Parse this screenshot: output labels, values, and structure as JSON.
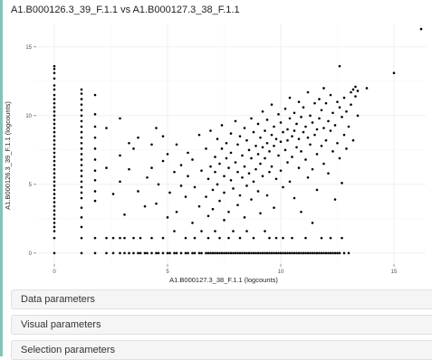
{
  "plot": {
    "title": "A1.B000126.3_39_F.1.1 vs A1.B000127.3_38_F.1.1"
  },
  "chart_data": {
    "type": "scatter",
    "title": "A1.B000126.3_39_F.1.1 vs A1.B000127.3_38_F.1.1",
    "xlabel": "A1.B000127.3_38_F.1.1 (logcounts)",
    "ylabel": "A1.B000126.3_39_F.1.1 (logcounts)",
    "xlim": [
      -0.8,
      16.4
    ],
    "ylim": [
      -0.8,
      16.7
    ],
    "xticks": [
      0,
      5,
      10,
      15
    ],
    "yticks": [
      0,
      5,
      10,
      15
    ],
    "grid": true,
    "point_color": "#000000",
    "panel_background": "#ffffff",
    "grid_color": "#ebebeb",
    "points": [
      [
        0,
        13.6
      ],
      [
        0,
        13.4
      ],
      [
        0,
        13.1
      ],
      [
        0,
        12.7
      ],
      [
        0,
        12.2
      ],
      [
        0,
        11.9
      ],
      [
        0,
        11.5
      ],
      [
        0,
        11.2
      ],
      [
        0,
        10.9
      ],
      [
        0,
        10.6
      ],
      [
        0,
        10.3
      ],
      [
        0,
        10.0
      ],
      [
        0,
        9.7
      ],
      [
        0,
        9.4
      ],
      [
        0,
        9.1
      ],
      [
        0,
        8.8
      ],
      [
        0,
        8.5
      ],
      [
        0,
        8.2
      ],
      [
        0,
        7.9
      ],
      [
        0,
        7.6
      ],
      [
        0,
        7.3
      ],
      [
        0,
        7.0
      ],
      [
        0,
        6.7
      ],
      [
        0,
        6.4
      ],
      [
        0,
        6.1
      ],
      [
        0,
        5.8
      ],
      [
        0,
        5.5
      ],
      [
        0,
        5.2
      ],
      [
        0,
        4.9
      ],
      [
        0,
        4.6
      ],
      [
        0,
        4.3
      ],
      [
        0,
        4.0
      ],
      [
        0,
        3.7
      ],
      [
        0,
        3.4
      ],
      [
        0,
        3.1
      ],
      [
        0,
        2.8
      ],
      [
        0,
        2.5
      ],
      [
        0,
        2.2
      ],
      [
        0,
        1.9
      ],
      [
        0,
        1.6
      ],
      [
        0,
        1.1
      ],
      [
        0,
        0
      ],
      [
        1.2,
        11.9
      ],
      [
        1.2,
        11.6
      ],
      [
        1.2,
        11.2
      ],
      [
        1.2,
        10.8
      ],
      [
        1.2,
        10.4
      ],
      [
        1.2,
        10.0
      ],
      [
        1.2,
        9.6
      ],
      [
        1.2,
        9.2
      ],
      [
        1.2,
        8.8
      ],
      [
        1.2,
        8.4
      ],
      [
        1.2,
        8.0
      ],
      [
        1.2,
        7.6
      ],
      [
        1.2,
        7.2
      ],
      [
        1.2,
        6.8
      ],
      [
        1.2,
        6.4
      ],
      [
        1.2,
        6.0
      ],
      [
        1.2,
        5.6
      ],
      [
        1.2,
        5.2
      ],
      [
        1.2,
        4.8
      ],
      [
        1.2,
        4.4
      ],
      [
        1.2,
        4.0
      ],
      [
        1.2,
        3.3
      ],
      [
        1.2,
        2.6
      ],
      [
        1.2,
        1.9
      ],
      [
        1.2,
        1.1
      ],
      [
        1.2,
        0
      ],
      [
        1.8,
        11.5
      ],
      [
        1.8,
        10.1
      ],
      [
        1.8,
        9.2
      ],
      [
        1.8,
        8.4
      ],
      [
        1.8,
        7.6
      ],
      [
        1.8,
        6.8
      ],
      [
        1.8,
        6.0
      ],
      [
        1.8,
        5.3
      ],
      [
        1.8,
        4.5
      ],
      [
        1.8,
        3.8
      ],
      [
        1.8,
        1.1
      ],
      [
        1.8,
        0
      ],
      [
        2.3,
        9.1
      ],
      [
        2.3,
        6.2
      ],
      [
        2.3,
        1.1
      ],
      [
        2.3,
        0
      ],
      [
        2.6,
        4.3
      ],
      [
        2.6,
        1.1
      ],
      [
        2.6,
        0
      ],
      [
        2.9,
        9.8
      ],
      [
        2.9,
        7.1
      ],
      [
        2.9,
        5.2
      ],
      [
        2.9,
        1.1
      ],
      [
        2.9,
        0
      ],
      [
        3.1,
        2.8
      ],
      [
        3.1,
        1.1
      ],
      [
        3.1,
        0
      ],
      [
        3.3,
        8.0
      ],
      [
        3.3,
        6.1
      ],
      [
        3.3,
        0
      ],
      [
        3.5,
        7.6
      ],
      [
        3.5,
        1.1
      ],
      [
        3.5,
        0
      ],
      [
        3.7,
        8.4
      ],
      [
        3.7,
        4.5
      ],
      [
        3.7,
        0
      ],
      [
        3.8,
        1.1
      ],
      [
        3.8,
        0
      ],
      [
        4.0,
        3.4
      ],
      [
        4.0,
        0
      ],
      [
        4.1,
        5.5
      ],
      [
        4.1,
        0
      ],
      [
        4.3,
        7.9
      ],
      [
        4.3,
        6.2
      ],
      [
        4.3,
        1.1
      ],
      [
        4.3,
        0
      ],
      [
        4.5,
        9.1
      ],
      [
        4.5,
        3.6
      ],
      [
        4.5,
        0
      ],
      [
        4.6,
        5.0
      ],
      [
        4.6,
        0
      ],
      [
        4.8,
        8.5
      ],
      [
        4.8,
        6.7
      ],
      [
        4.8,
        1.1
      ],
      [
        4.8,
        0
      ],
      [
        5.0,
        7.2
      ],
      [
        5.0,
        2.6
      ],
      [
        5.0,
        0
      ],
      [
        5.1,
        4.4
      ],
      [
        5.1,
        0
      ],
      [
        5.3,
        5.9
      ],
      [
        5.3,
        1.6
      ],
      [
        5.3,
        0
      ],
      [
        5.4,
        7.9
      ],
      [
        5.4,
        3.0
      ],
      [
        5.4,
        0
      ],
      [
        5.6,
        6.4
      ],
      [
        5.6,
        4.9
      ],
      [
        5.6,
        0
      ],
      [
        5.8,
        4.1
      ],
      [
        5.8,
        1.1
      ],
      [
        5.8,
        0
      ],
      [
        5.9,
        7.3
      ],
      [
        5.9,
        5.6
      ],
      [
        5.9,
        0
      ],
      [
        6.1,
        6.8
      ],
      [
        6.1,
        2.2
      ],
      [
        6.1,
        0
      ],
      [
        6.2,
        4.8
      ],
      [
        6.2,
        1.1
      ],
      [
        6.2,
        0
      ],
      [
        6.4,
        8.6
      ],
      [
        6.4,
        3.4
      ],
      [
        6.4,
        0
      ],
      [
        6.5,
        6.0
      ],
      [
        6.5,
        1.6
      ],
      [
        6.5,
        0
      ],
      [
        6.7,
        7.6
      ],
      [
        6.7,
        4.1
      ],
      [
        6.7,
        0
      ],
      [
        6.8,
        5.4
      ],
      [
        6.8,
        2.7
      ],
      [
        6.8,
        1.1
      ],
      [
        6.8,
        0
      ],
      [
        6.9,
        8.9
      ],
      [
        6.9,
        6.3
      ],
      [
        6.9,
        0
      ],
      [
        7.0,
        4.6
      ],
      [
        7.0,
        3.2
      ],
      [
        7.0,
        0
      ],
      [
        7.1,
        7.0
      ],
      [
        7.1,
        5.9
      ],
      [
        7.1,
        1.6
      ],
      [
        7.1,
        0
      ],
      [
        7.2,
        8.3
      ],
      [
        7.2,
        5.0
      ],
      [
        7.2,
        0
      ],
      [
        7.3,
        6.5
      ],
      [
        7.3,
        3.8
      ],
      [
        7.3,
        1.1
      ],
      [
        7.3,
        0
      ],
      [
        7.4,
        9.3
      ],
      [
        7.4,
        7.6
      ],
      [
        7.4,
        0
      ],
      [
        7.5,
        5.6
      ],
      [
        7.5,
        4.4
      ],
      [
        7.5,
        2.4
      ],
      [
        7.5,
        0
      ],
      [
        7.6,
        8.0
      ],
      [
        7.6,
        6.9
      ],
      [
        7.6,
        0
      ],
      [
        7.7,
        6.2
      ],
      [
        7.7,
        3.0
      ],
      [
        7.7,
        1.1
      ],
      [
        7.7,
        0
      ],
      [
        7.8,
        8.7
      ],
      [
        7.8,
        7.3
      ],
      [
        7.8,
        5.3
      ],
      [
        7.8,
        0
      ],
      [
        7.9,
        4.7
      ],
      [
        7.9,
        1.6
      ],
      [
        7.9,
        0
      ],
      [
        8.0,
        9.6
      ],
      [
        8.0,
        6.6
      ],
      [
        8.0,
        0
      ],
      [
        8.1,
        7.9
      ],
      [
        8.1,
        5.9
      ],
      [
        8.1,
        3.5
      ],
      [
        8.1,
        0
      ],
      [
        8.2,
        8.5
      ],
      [
        8.2,
        4.2
      ],
      [
        8.2,
        1.1
      ],
      [
        8.2,
        0
      ],
      [
        8.3,
        7.1
      ],
      [
        8.3,
        5.5
      ],
      [
        8.3,
        0
      ],
      [
        8.4,
        9.1
      ],
      [
        8.4,
        6.3
      ],
      [
        8.4,
        2.6
      ],
      [
        8.4,
        0
      ],
      [
        8.5,
        8.2
      ],
      [
        8.5,
        4.9
      ],
      [
        8.5,
        1.6
      ],
      [
        8.5,
        0
      ],
      [
        8.6,
        7.5
      ],
      [
        8.6,
        5.8
      ],
      [
        8.6,
        0
      ],
      [
        8.7,
        9.8
      ],
      [
        8.7,
        6.9
      ],
      [
        8.7,
        3.9
      ],
      [
        8.7,
        0
      ],
      [
        8.8,
        8.8
      ],
      [
        8.8,
        5.2
      ],
      [
        8.8,
        1.1
      ],
      [
        8.8,
        0
      ],
      [
        8.9,
        7.8
      ],
      [
        8.9,
        6.1
      ],
      [
        8.9,
        0
      ],
      [
        9.0,
        9.4
      ],
      [
        9.0,
        7.2
      ],
      [
        9.0,
        4.5
      ],
      [
        9.0,
        0
      ],
      [
        9.1,
        8.4
      ],
      [
        9.1,
        6.5
      ],
      [
        9.1,
        2.9
      ],
      [
        9.1,
        0
      ],
      [
        9.2,
        10.3
      ],
      [
        9.2,
        7.7
      ],
      [
        9.2,
        5.6
      ],
      [
        9.2,
        0
      ],
      [
        9.3,
        8.9
      ],
      [
        9.3,
        6.9
      ],
      [
        9.3,
        1.6
      ],
      [
        9.3,
        0
      ],
      [
        9.4,
        9.7
      ],
      [
        9.4,
        8.0
      ],
      [
        9.4,
        4.2
      ],
      [
        9.4,
        0
      ],
      [
        9.5,
        7.4
      ],
      [
        9.5,
        5.9
      ],
      [
        9.5,
        1.1
      ],
      [
        9.5,
        0
      ],
      [
        9.6,
        10.8
      ],
      [
        9.6,
        8.6
      ],
      [
        9.6,
        6.3
      ],
      [
        9.6,
        0
      ],
      [
        9.7,
        9.2
      ],
      [
        9.7,
        7.8
      ],
      [
        9.7,
        3.3
      ],
      [
        9.7,
        0
      ],
      [
        9.8,
        8.3
      ],
      [
        9.8,
        5.4
      ],
      [
        9.8,
        1.1
      ],
      [
        9.8,
        0
      ],
      [
        9.9,
        10.1
      ],
      [
        9.9,
        7.1
      ],
      [
        9.9,
        0
      ],
      [
        10.0,
        9.5
      ],
      [
        10.0,
        8.1
      ],
      [
        10.0,
        6.0
      ],
      [
        10.0,
        0
      ],
      [
        10.1,
        8.8
      ],
      [
        10.1,
        4.8
      ],
      [
        10.1,
        1.1
      ],
      [
        10.1,
        0
      ],
      [
        10.2,
        10.5
      ],
      [
        10.2,
        7.5
      ],
      [
        10.2,
        0
      ],
      [
        10.3,
        9.0
      ],
      [
        10.3,
        8.2
      ],
      [
        10.3,
        6.6
      ],
      [
        10.3,
        0
      ],
      [
        10.4,
        11.3
      ],
      [
        10.4,
        9.8
      ],
      [
        10.4,
        5.2
      ],
      [
        10.4,
        0
      ],
      [
        10.5,
        8.5
      ],
      [
        10.5,
        7.0
      ],
      [
        10.5,
        1.1
      ],
      [
        10.5,
        0
      ],
      [
        10.6,
        10.2
      ],
      [
        10.6,
        8.9
      ],
      [
        10.6,
        4.0
      ],
      [
        10.6,
        0
      ],
      [
        10.7,
        9.4
      ],
      [
        10.7,
        7.7
      ],
      [
        10.7,
        0
      ],
      [
        10.8,
        11.0
      ],
      [
        10.8,
        8.3
      ],
      [
        10.8,
        6.2
      ],
      [
        10.8,
        0
      ],
      [
        10.9,
        9.9
      ],
      [
        10.9,
        7.4
      ],
      [
        10.9,
        3.0
      ],
      [
        10.9,
        0
      ],
      [
        11.0,
        10.6
      ],
      [
        11.0,
        8.8
      ],
      [
        11.0,
        0
      ],
      [
        11.1,
        9.2
      ],
      [
        11.1,
        6.8
      ],
      [
        11.1,
        1.1
      ],
      [
        11.1,
        0
      ],
      [
        11.2,
        11.7
      ],
      [
        11.2,
        8.4
      ],
      [
        11.2,
        5.5
      ],
      [
        11.2,
        0
      ],
      [
        11.3,
        10.0
      ],
      [
        11.3,
        7.9
      ],
      [
        11.3,
        0
      ],
      [
        11.4,
        9.5
      ],
      [
        11.4,
        6.1
      ],
      [
        11.4,
        2.2
      ],
      [
        11.4,
        0
      ],
      [
        11.5,
        10.9
      ],
      [
        11.5,
        8.6
      ],
      [
        11.5,
        0
      ],
      [
        11.6,
        9.0
      ],
      [
        11.6,
        7.2
      ],
      [
        11.6,
        4.6
      ],
      [
        11.6,
        0
      ],
      [
        11.7,
        11.2
      ],
      [
        11.7,
        9.8
      ],
      [
        11.7,
        0
      ],
      [
        11.8,
        10.4
      ],
      [
        11.8,
        7.8
      ],
      [
        11.8,
        1.1
      ],
      [
        11.8,
        0
      ],
      [
        11.9,
        12.0
      ],
      [
        11.9,
        9.1
      ],
      [
        11.9,
        6.5
      ],
      [
        11.9,
        0
      ],
      [
        12.0,
        10.9
      ],
      [
        12.0,
        8.2
      ],
      [
        12.0,
        0
      ],
      [
        12.1,
        9.6
      ],
      [
        12.1,
        5.8
      ],
      [
        12.1,
        0
      ],
      [
        12.2,
        11.5
      ],
      [
        12.2,
        8.9
      ],
      [
        12.2,
        1.1
      ],
      [
        12.2,
        0
      ],
      [
        12.3,
        10.2
      ],
      [
        12.3,
        7.4
      ],
      [
        12.3,
        0
      ],
      [
        12.4,
        9.3
      ],
      [
        12.4,
        3.9
      ],
      [
        12.4,
        0
      ],
      [
        12.5,
        11.0
      ],
      [
        12.5,
        8.0
      ],
      [
        12.5,
        0
      ],
      [
        12.6,
        13.6
      ],
      [
        12.6,
        10.6
      ],
      [
        12.6,
        6.9
      ],
      [
        12.6,
        0
      ],
      [
        12.7,
        9.9
      ],
      [
        12.7,
        5.1
      ],
      [
        12.7,
        1.1
      ],
      [
        12.8,
        11.3
      ],
      [
        12.8,
        8.6
      ],
      [
        12.8,
        0
      ],
      [
        12.9,
        10.3
      ],
      [
        12.9,
        7.6
      ],
      [
        13.0,
        9.2
      ],
      [
        13.0,
        0
      ],
      [
        13.1,
        11.7
      ],
      [
        13.1,
        10.8
      ],
      [
        13.2,
        11.9
      ],
      [
        13.2,
        8.2
      ],
      [
        13.3,
        12.1
      ],
      [
        13.3,
        11.4
      ],
      [
        13.4,
        11.8
      ],
      [
        13.4,
        10.0
      ],
      [
        13.8,
        12.0
      ],
      [
        15.0,
        13.1
      ],
      [
        16.2,
        16.3
      ]
    ]
  },
  "panels": [
    {
      "label": "Data parameters"
    },
    {
      "label": "Visual parameters"
    },
    {
      "label": "Selection parameters"
    }
  ]
}
